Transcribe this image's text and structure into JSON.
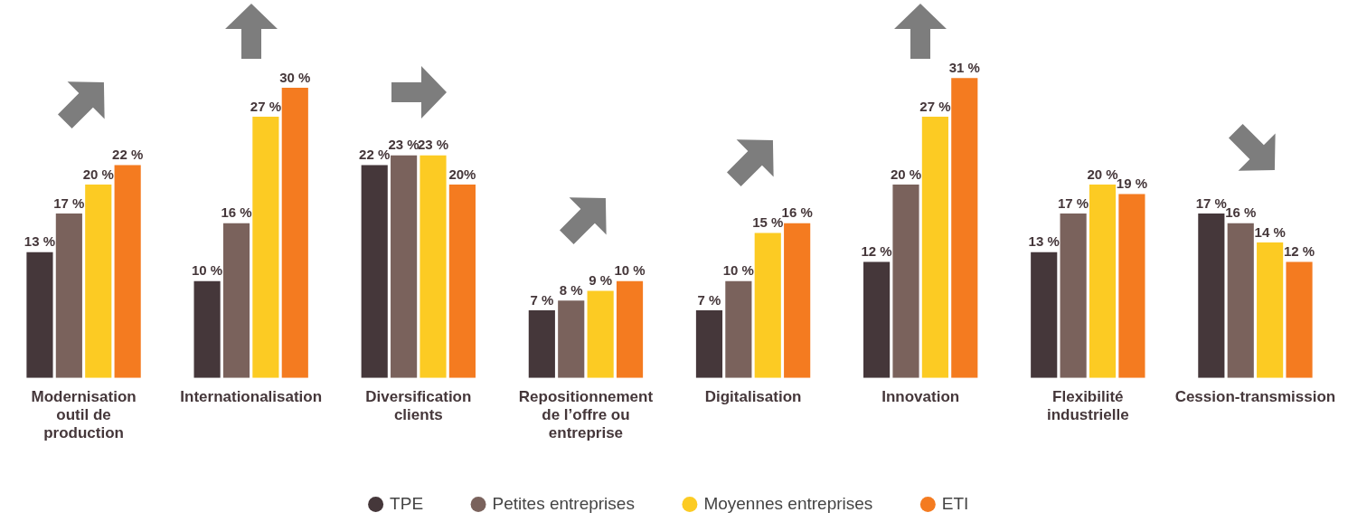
{
  "chart_data": {
    "type": "bar",
    "categories": [
      "Modernisation outil de production",
      "Internationalisation",
      "Diversification clients",
      "Repositionnement de l’offre ou entreprise",
      "Digitalisation",
      "Innovation",
      "Flexibilité industrielle",
      "Cession-transmission"
    ],
    "series": [
      {
        "name": "TPE",
        "color": "#45373a",
        "values": [
          13,
          10,
          22,
          7,
          7,
          12,
          13,
          17
        ],
        "value_labels": [
          "13 %",
          "10 %",
          "22 %",
          "7 %",
          "7 %",
          "12 %",
          "13 %",
          "17 %"
        ]
      },
      {
        "name": "Petites entreprises",
        "color": "#7a625c",
        "values": [
          17,
          16,
          23,
          8,
          10,
          20,
          17,
          16
        ],
        "value_labels": [
          "17 %",
          "16 %",
          "23 %",
          "8 %",
          "10 %",
          "20 %",
          "17 %",
          "16 %"
        ]
      },
      {
        "name": "Moyennes entreprises",
        "color": "#fccb23",
        "values": [
          20,
          27,
          23,
          9,
          15,
          27,
          20,
          14
        ],
        "value_labels": [
          "20 %",
          "27 %",
          "23 %",
          "9 %",
          "15 %",
          "27 %",
          "20 %",
          "14 %"
        ]
      },
      {
        "name": "ETI",
        "color": "#f47b20",
        "values": [
          22,
          30,
          20,
          10,
          16,
          31,
          19,
          12
        ],
        "value_labels": [
          "22 %",
          "30 %",
          "20%",
          "10 %",
          "16 %",
          "31 %",
          "19 %",
          "12 %"
        ]
      }
    ],
    "legend": "bottom"
  }
}
